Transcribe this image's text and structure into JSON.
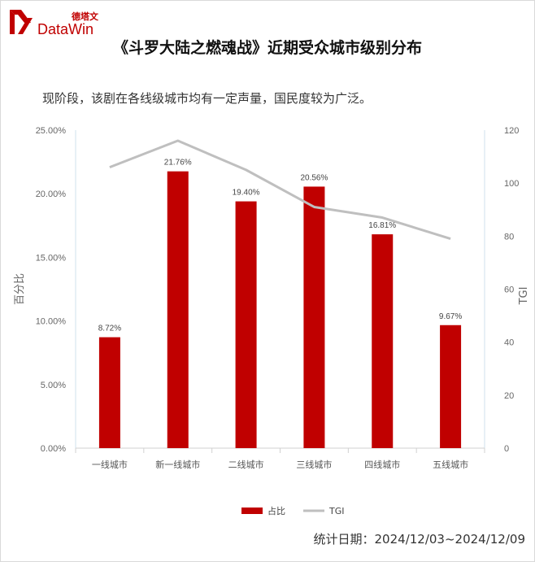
{
  "brand": {
    "name_cn": "德塔文",
    "name_en": "DataWin",
    "accent": "#c00000"
  },
  "title": "《斗罗大陆之燃魂战》近期受众城市级别分布",
  "subtitle": "现阶段，该剧在各线级城市均有一定声量，国民度较为广泛。",
  "footer": {
    "date_range": "统计日期：2024/12/03~2024/12/09"
  },
  "chart_data": {
    "type": "bar",
    "categories": [
      "一线城市",
      "新一线城市",
      "二线城市",
      "三线城市",
      "四线城市",
      "五线城市"
    ],
    "series": [
      {
        "name": "占比",
        "type": "bar",
        "axis": "left",
        "color": "#c00000",
        "values": [
          8.72,
          21.76,
          19.4,
          20.56,
          16.81,
          9.67
        ],
        "labels": [
          "8.72%",
          "21.76%",
          "19.40%",
          "20.56%",
          "16.81%",
          "9.67%"
        ]
      },
      {
        "name": "TGI",
        "type": "line",
        "axis": "right",
        "color": "#bfbfbf",
        "values": [
          106,
          116,
          105,
          91,
          87,
          79
        ]
      }
    ],
    "ylabel": "百分比",
    "y2label": "TGI",
    "ylim": [
      0,
      25
    ],
    "y2lim": [
      0,
      120
    ],
    "yticks": [
      "0.00%",
      "5.00%",
      "10.00%",
      "15.00%",
      "20.00%",
      "25.00%"
    ],
    "y2ticks": [
      "0",
      "20",
      "40",
      "60",
      "80",
      "100",
      "120"
    ],
    "grid": false,
    "legend": "bottom"
  }
}
